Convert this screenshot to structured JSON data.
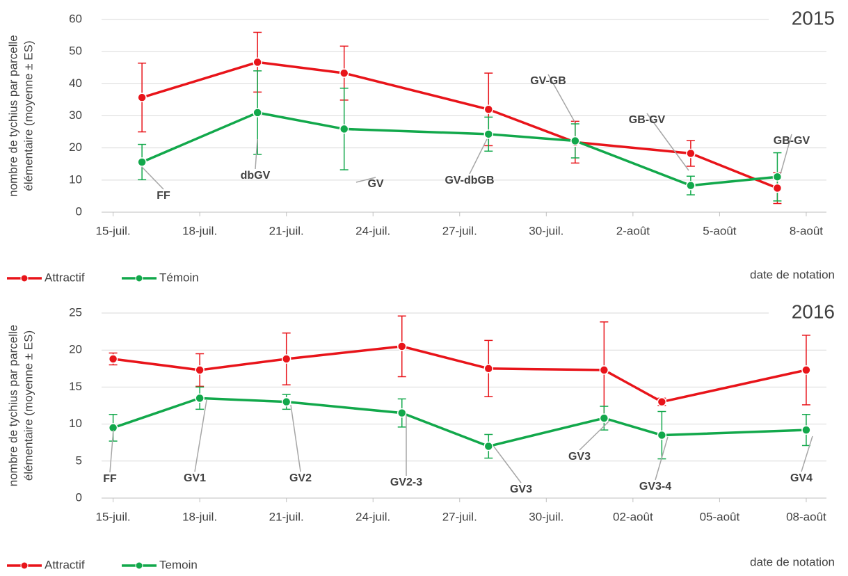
{
  "chart_data": [
    {
      "type": "line",
      "title": "2015",
      "y_label": [
        "nombre de tychius par parcelle",
        "élémentaire (moyenne ± ES)"
      ],
      "x_label": "date de notation",
      "x": [
        16,
        20,
        23,
        28,
        31,
        35,
        38
      ],
      "xlim": [
        14.6,
        39.7
      ],
      "xticks": [
        {
          "value": 15,
          "label": "15-juil."
        },
        {
          "value": 18,
          "label": "18-juil."
        },
        {
          "value": 21,
          "label": "21-juil."
        },
        {
          "value": 24,
          "label": "24-juil."
        },
        {
          "value": 27,
          "label": "27-juil."
        },
        {
          "value": 30,
          "label": "30-juil."
        },
        {
          "value": 33,
          "label": "2-août"
        },
        {
          "value": 36,
          "label": "5-août"
        },
        {
          "value": 39,
          "label": "8-août"
        }
      ],
      "ylim": [
        0,
        60
      ],
      "yticks": [
        0,
        10,
        20,
        30,
        40,
        50,
        60
      ],
      "grid": true,
      "series": [
        {
          "name": "Attractif",
          "color": "#e8141a",
          "values": [
            35.7,
            46.7,
            43.3,
            32,
            21.8,
            18.3,
            7.5
          ],
          "errors": [
            10.7,
            9.3,
            8.4,
            11.3,
            6.5,
            4,
            4.8
          ]
        },
        {
          "name": "Témoin",
          "color": "#12a84b",
          "values": [
            15.6,
            31,
            25.9,
            24.3,
            22.2,
            8.3,
            11
          ],
          "errors": [
            5.5,
            13,
            12.7,
            5.3,
            5.3,
            2.9,
            7.5
          ]
        }
      ],
      "annotations": [
        "FF",
        "dbGV",
        "GV",
        "GV-dbGB",
        "GV-GB",
        "GB-GV",
        "GB-GV"
      ]
    },
    {
      "type": "line",
      "title": "2016",
      "y_label": [
        "nombre de tychius par parcelle",
        "élémentaire (moyenne ± ES)"
      ],
      "x_label": "date de notation",
      "x": [
        15,
        18,
        21,
        25,
        28,
        32,
        34,
        39
      ],
      "xlim": [
        14.6,
        39.7
      ],
      "xticks": [
        {
          "value": 15,
          "label": "15-juil."
        },
        {
          "value": 18,
          "label": "18-juil."
        },
        {
          "value": 21,
          "label": "21-juil."
        },
        {
          "value": 24,
          "label": "24-juil."
        },
        {
          "value": 27,
          "label": "27-juil."
        },
        {
          "value": 30,
          "label": "30-juil."
        },
        {
          "value": 33,
          "label": "02-août"
        },
        {
          "value": 36,
          "label": "05-août"
        },
        {
          "value": 39,
          "label": "08-août"
        }
      ],
      "ylim": [
        0,
        25
      ],
      "yticks": [
        0,
        5,
        10,
        15,
        20,
        25
      ],
      "grid": true,
      "series": [
        {
          "name": "Attractif",
          "color": "#e8141a",
          "values": [
            18.8,
            17.3,
            18.8,
            20.5,
            17.5,
            17.3,
            13,
            17.3
          ],
          "errors": [
            0.8,
            2.2,
            3.5,
            4.1,
            3.8,
            6.5,
            0.5,
            4.7
          ]
        },
        {
          "name": "Temoin",
          "color": "#12a84b",
          "values": [
            9.5,
            13.5,
            13,
            11.5,
            7,
            10.8,
            8.5,
            9.2
          ],
          "errors": [
            1.8,
            1.5,
            1,
            1.9,
            1.6,
            1.6,
            3.2,
            2.1
          ]
        }
      ],
      "annotations": [
        "FF",
        "GV1",
        "GV2",
        "GV2-3",
        "GV3",
        "GV3",
        "GV3-4",
        "GV4"
      ]
    }
  ]
}
